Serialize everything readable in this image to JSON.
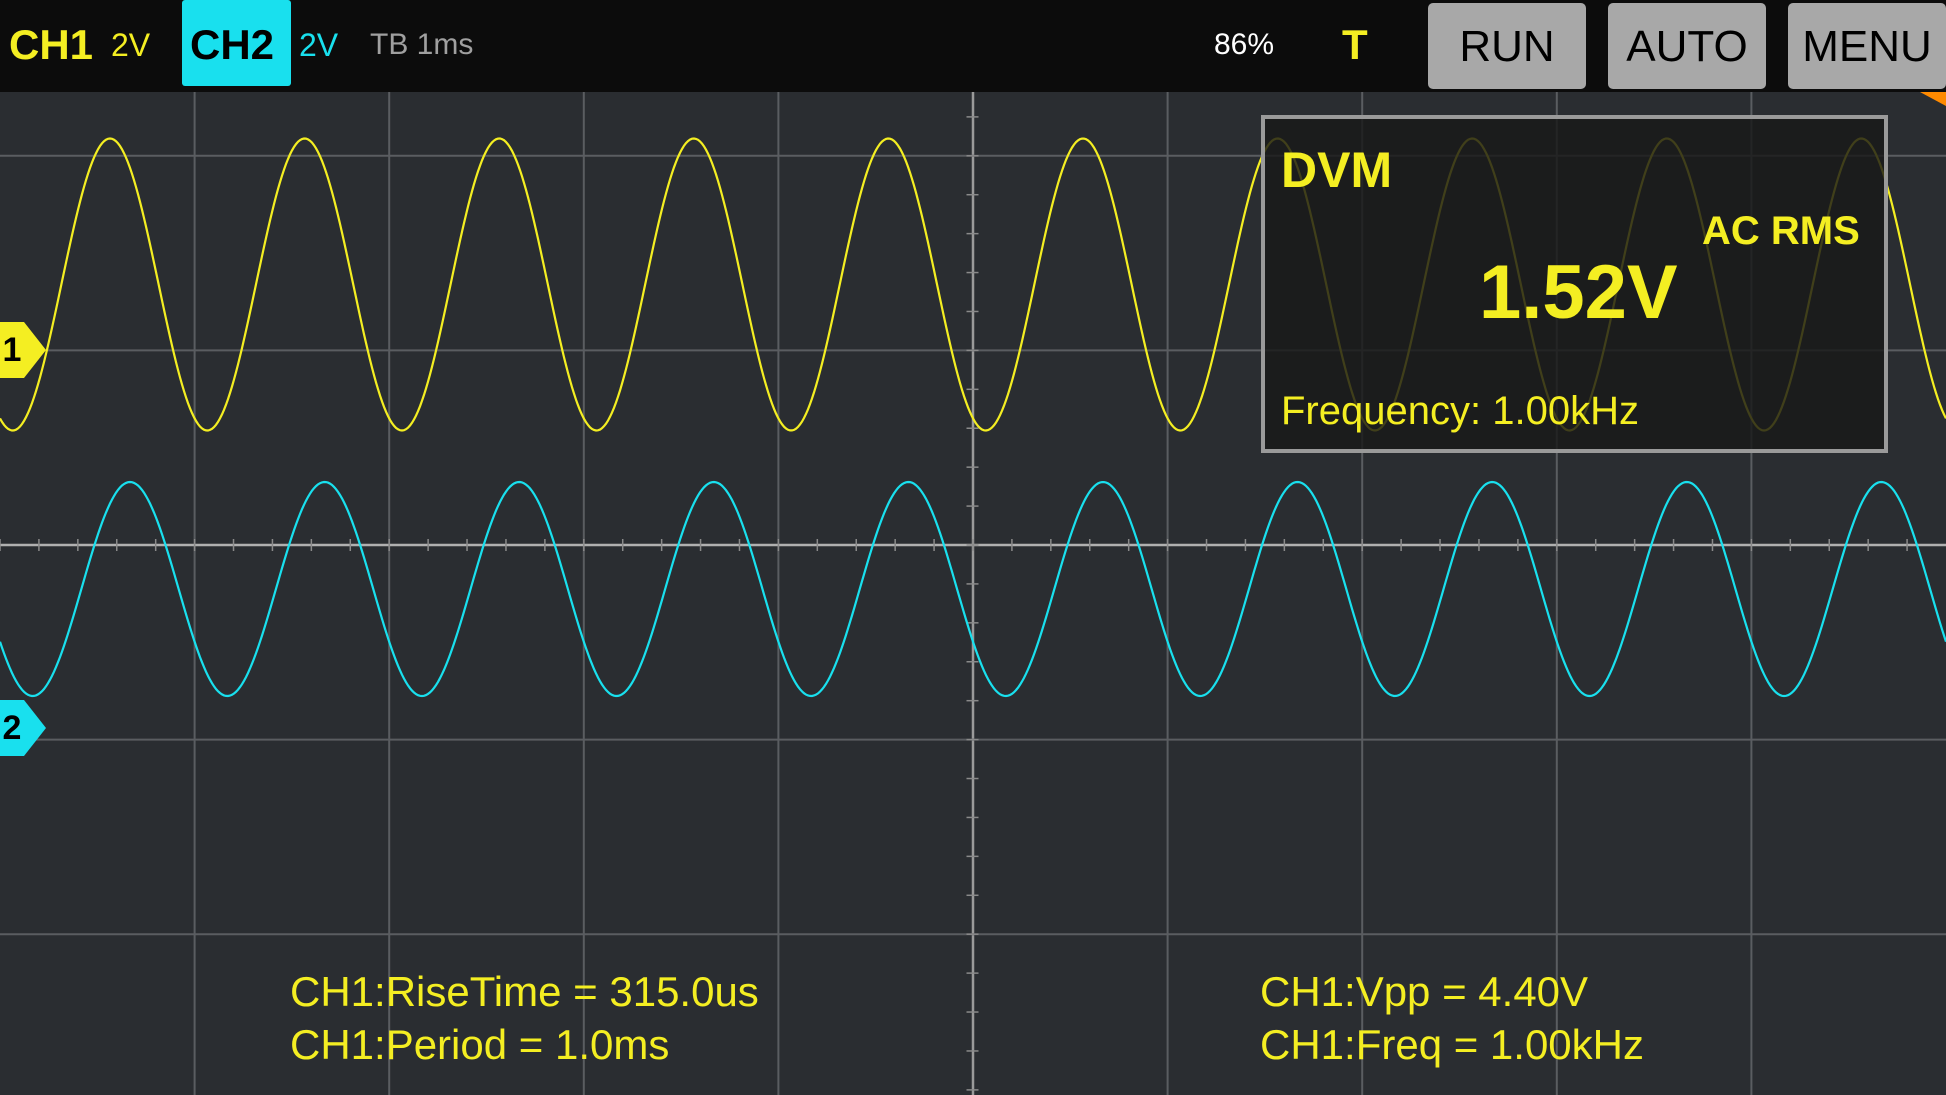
{
  "top_bar": {
    "ch1": {
      "label": "CH1",
      "scale": "2V"
    },
    "ch2": {
      "label": "CH2",
      "scale": "2V"
    },
    "timebase": "TB 1ms",
    "battery": "86%",
    "trigger_label": "T",
    "buttons": {
      "run": "RUN",
      "auto": "AUTO",
      "menu": "MENU"
    }
  },
  "markers": {
    "ch1": "1",
    "ch2": "2"
  },
  "dvm": {
    "title": "DVM",
    "mode": "AC RMS",
    "value": "1.52V",
    "frequency": "Frequency: 1.00kHz"
  },
  "measurements": {
    "left": [
      "CH1:RiseTime = 315.0us",
      "CH1:Period = 1.0ms"
    ],
    "right": [
      "CH1:Vpp = 4.40V",
      "CH1:Freq = 1.00kHz"
    ]
  },
  "colors": {
    "ch1": "#f4ee22",
    "ch2": "#19e0ee",
    "background": "#2a2d31",
    "top_bar": "#0c0c0c",
    "button": "#a8a8a8",
    "trigger": "#ff8a00"
  }
}
